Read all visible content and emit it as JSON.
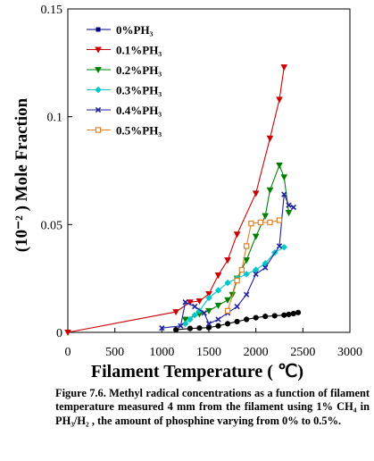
{
  "caption": "Figure 7.6. Methyl radical concentrations as a function of filament temperature measured 4 mm from the filament using 1% CH₄ in PH₃/H₂ , the amount of phosphine varying from 0% to 0.5%.",
  "chart_data": {
    "type": "line",
    "xlabel": "Filament Temperature ( ℃)",
    "ylabel": "(10⁻² ) Mole Fraction",
    "xlim": [
      0,
      3000
    ],
    "ylim": [
      0,
      0.15
    ],
    "xticks": [
      "0",
      "500",
      "1000",
      "1500",
      "2000",
      "2500",
      "3000"
    ],
    "yticks": [
      "0",
      "0.05",
      "0.1",
      "0.15"
    ],
    "legend_position": "top-left",
    "grid": false,
    "series": [
      {
        "name": "0%PH₃",
        "color": "#000000",
        "legend_color": "#000080",
        "marker": "circle",
        "x": [
          1150,
          1300,
          1400,
          1500,
          1600,
          1700,
          1800,
          1900,
          2000,
          2100,
          2200,
          2300,
          2350,
          2400,
          2450
        ],
        "y": [
          0.0012,
          0.0018,
          0.002,
          0.0022,
          0.003,
          0.004,
          0.005,
          0.006,
          0.0068,
          0.0074,
          0.0077,
          0.008,
          0.0083,
          0.0087,
          0.0092
        ]
      },
      {
        "name": "0.1%PH₃",
        "color": "#cc0000",
        "marker": "triangle-down",
        "x": [
          0,
          1150,
          1300,
          1400,
          1500,
          1600,
          1700,
          1800,
          2000,
          2150,
          2250,
          2300
        ],
        "y": [
          0,
          0.0095,
          0.014,
          0.0145,
          0.0178,
          0.0265,
          0.0335,
          0.0455,
          0.0645,
          0.09,
          0.108,
          0.123
        ]
      },
      {
        "name": "0.2%PH₃",
        "color": "#008000",
        "marker": "triangle-down",
        "x": [
          1250,
          1400,
          1500,
          1600,
          1700,
          1750,
          1800,
          1900,
          2000,
          2100,
          2150,
          2250,
          2300,
          2350
        ],
        "y": [
          0.006,
          0.0085,
          0.01,
          0.0125,
          0.015,
          0.0175,
          0.025,
          0.0335,
          0.0445,
          0.054,
          0.066,
          0.0775,
          0.072,
          0.0555
        ]
      },
      {
        "name": "0.3%PH₃",
        "color": "#00c8c8",
        "marker": "diamond",
        "x": [
          1250,
          1300,
          1350,
          1400,
          1500,
          1600,
          1700,
          1800,
          1900,
          2000,
          2100,
          2200,
          2300
        ],
        "y": [
          0.004,
          0.006,
          0.008,
          0.01,
          0.016,
          0.0195,
          0.023,
          0.025,
          0.027,
          0.029,
          0.032,
          0.037,
          0.0395
        ]
      },
      {
        "name": "0.4%PH₃",
        "color": "#2020a0",
        "marker": "cross",
        "x": [
          1000,
          1200,
          1250,
          1350,
          1450,
          1500,
          1600,
          1700,
          1800,
          1900,
          2000,
          2100,
          2250,
          2300,
          2350,
          2400
        ],
        "y": [
          0.002,
          0.003,
          0.014,
          0.012,
          0.009,
          0.004,
          0.006,
          0.009,
          0.012,
          0.0175,
          0.027,
          0.03,
          0.04,
          0.064,
          0.059,
          0.058
        ]
      },
      {
        "name": "0.5%PH₃",
        "color": "#e08020",
        "marker": "square",
        "x": [
          1700,
          1800,
          1850,
          1900,
          1950,
          2050,
          2150,
          2250
        ],
        "y": [
          0.01,
          0.024,
          0.029,
          0.04,
          0.0505,
          0.051,
          0.051,
          0.052
        ]
      }
    ]
  }
}
